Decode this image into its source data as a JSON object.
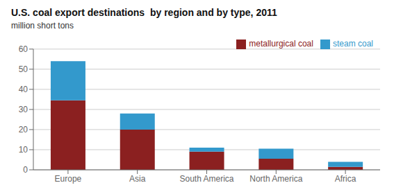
{
  "chart_data": {
    "type": "bar",
    "title": "U.S. coal export destinations  by region and by type, 2011",
    "subtitle": "million short tons",
    "categories": [
      "Europe",
      "Asia",
      "South America",
      "North America",
      "Africa"
    ],
    "series": [
      {
        "name": "metallurgical coal",
        "color": "#8B2020",
        "values": [
          34.5,
          20.0,
          9.0,
          5.5,
          1.5
        ]
      },
      {
        "name": "steam coal",
        "color": "#3399CC",
        "values": [
          19.5,
          8.0,
          2.0,
          5.0,
          2.5
        ]
      }
    ],
    "stacked": true,
    "ylim": [
      0,
      60
    ],
    "yticks": [
      0,
      10,
      20,
      30,
      40,
      50,
      60
    ],
    "grid": true,
    "legend": "upper right"
  }
}
